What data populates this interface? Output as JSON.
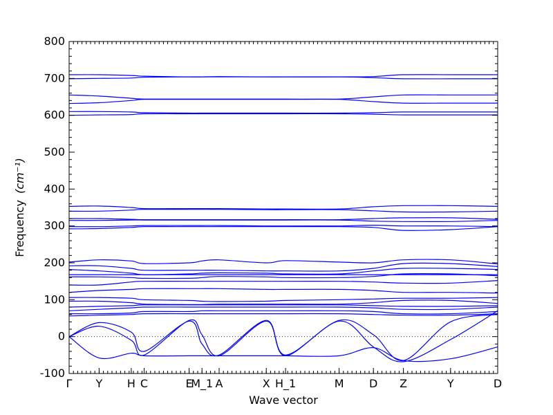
{
  "chart_data": {
    "type": "line",
    "xlabel": "Wave vector",
    "ylabel_text": "Frequency",
    "ylabel_unit": "(cm⁻¹)",
    "ylim": [
      -100,
      800
    ],
    "yticks": [
      -100,
      0,
      100,
      200,
      300,
      400,
      500,
      600,
      700,
      800
    ],
    "zero_line": true,
    "x_labels": [
      "Γ",
      "Y",
      "H",
      "C",
      "E",
      "M_1",
      "A",
      "X",
      "H_1",
      "M",
      "D",
      "Z",
      "Y",
      "D"
    ],
    "x_positions": [
      0,
      0.07,
      0.145,
      0.175,
      0.28,
      0.31,
      0.35,
      0.46,
      0.505,
      0.63,
      0.71,
      0.78,
      0.89,
      1.0
    ],
    "series": [
      {
        "values": [
          710,
          710,
          708,
          706,
          704,
          704,
          705,
          704,
          704,
          704,
          705,
          710,
          710,
          710
        ]
      },
      {
        "values": [
          699,
          700,
          701,
          703,
          704,
          704,
          704,
          704,
          704,
          704,
          702,
          699,
          699,
          699
        ]
      },
      {
        "values": [
          655,
          652,
          646,
          644,
          644,
          644,
          644,
          644,
          644,
          644,
          650,
          655,
          655,
          655
        ]
      },
      {
        "values": [
          632,
          634,
          640,
          643,
          643,
          643,
          643,
          643,
          643,
          643,
          637,
          633,
          633,
          633
        ]
      },
      {
        "values": [
          610,
          610,
          609,
          607,
          606,
          606,
          606,
          606,
          606,
          606,
          607,
          609,
          609,
          609
        ]
      },
      {
        "values": [
          600,
          601,
          602,
          604,
          604,
          604,
          604,
          604,
          604,
          604,
          603,
          601,
          601,
          601
        ]
      },
      {
        "values": [
          353,
          354,
          350,
          347,
          347,
          347,
          347,
          346,
          346,
          346,
          352,
          355,
          355,
          353
        ]
      },
      {
        "values": [
          340,
          340,
          343,
          345,
          345,
          345,
          345,
          344,
          344,
          344,
          341,
          338,
          338,
          340
        ]
      },
      {
        "values": [
          320,
          320,
          318,
          317,
          317,
          317,
          317,
          317,
          317,
          317,
          320,
          322,
          322,
          318
        ]
      },
      {
        "values": [
          315,
          315,
          316,
          316,
          316,
          316,
          316,
          316,
          316,
          316,
          313,
          312,
          312,
          315
        ]
      },
      {
        "values": [
          298,
          298,
          300,
          301,
          301,
          301,
          301,
          300,
          300,
          300,
          302,
          300,
          300,
          298
        ]
      },
      {
        "values": [
          292,
          293,
          296,
          298,
          298,
          298,
          298,
          298,
          298,
          298,
          296,
          288,
          290,
          298
        ]
      },
      {
        "values": [
          202,
          208,
          205,
          198,
          200,
          205,
          208,
          200,
          206,
          202,
          200,
          208,
          208,
          197
        ]
      },
      {
        "values": [
          192,
          192,
          185,
          180,
          180,
          180,
          180,
          178,
          178,
          178,
          185,
          198,
          198,
          190
        ]
      },
      {
        "values": [
          182,
          178,
          172,
          168,
          170,
          172,
          173,
          172,
          170,
          170,
          178,
          185,
          185,
          182
        ]
      },
      {
        "values": [
          168,
          168,
          168,
          168,
          168,
          168,
          168,
          168,
          168,
          168,
          168,
          168,
          168,
          168
        ]
      },
      {
        "values": [
          162,
          162,
          160,
          158,
          158,
          160,
          163,
          162,
          160,
          160,
          163,
          170,
          170,
          165
        ]
      },
      {
        "values": [
          140,
          140,
          148,
          150,
          150,
          150,
          150,
          150,
          150,
          150,
          148,
          145,
          145,
          152
        ]
      },
      {
        "values": [
          120,
          125,
          128,
          130,
          130,
          130,
          130,
          128,
          128,
          128,
          125,
          120,
          120,
          118
        ]
      },
      {
        "values": [
          106,
          106,
          104,
          100,
          98,
          96,
          95,
          96,
          98,
          100,
          102,
          104,
          104,
          106
        ]
      },
      {
        "values": [
          96,
          96,
          92,
          88,
          87,
          87,
          88,
          88,
          88,
          88,
          92,
          98,
          98,
          90
        ]
      },
      {
        "values": [
          80,
          82,
          84,
          86,
          86,
          86,
          86,
          86,
          86,
          86,
          84,
          82,
          82,
          84
        ]
      },
      {
        "values": [
          70,
          74,
          78,
          80,
          80,
          80,
          80,
          80,
          80,
          80,
          78,
          74,
          74,
          80
        ]
      },
      {
        "values": [
          62,
          62,
          64,
          68,
          68,
          70,
          70,
          70,
          70,
          70,
          68,
          62,
          62,
          68
        ]
      },
      {
        "values": [
          56,
          58,
          60,
          62,
          62,
          62,
          62,
          62,
          62,
          62,
          60,
          58,
          58,
          62
        ]
      },
      {
        "values": [
          0,
          38,
          12,
          -40,
          42,
          -20,
          -50,
          44,
          -50,
          44,
          5,
          -65,
          40,
          60
        ]
      },
      {
        "values": [
          0,
          28,
          -10,
          -50,
          44,
          5,
          -52,
          42,
          -52,
          42,
          -28,
          -68,
          -8,
          70
        ]
      },
      {
        "values": [
          0,
          -58,
          -45,
          -52,
          -52,
          -52,
          -52,
          -52,
          -52,
          -52,
          -30,
          -65,
          -60,
          -28
        ]
      }
    ]
  }
}
